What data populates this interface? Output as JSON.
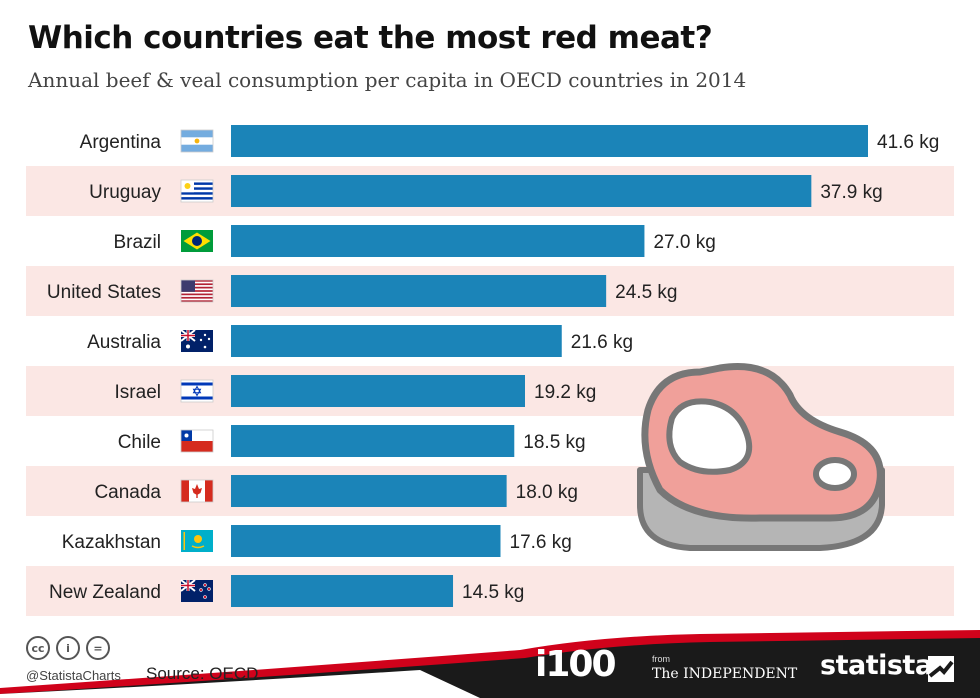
{
  "header": {
    "title": "Which countries eat the most red meat?",
    "subtitle": "Annual beef & veal consumption per capita in OECD countries in 2014"
  },
  "chart_data": {
    "type": "bar",
    "orientation": "horizontal",
    "categories": [
      "Argentina",
      "Uruguay",
      "Brazil",
      "United States",
      "Australia",
      "Israel",
      "Chile",
      "Canada",
      "Kazakhstan",
      "New Zealand"
    ],
    "values": [
      41.6,
      37.9,
      27.0,
      24.5,
      21.6,
      19.2,
      18.5,
      18.0,
      17.6,
      14.5
    ],
    "value_labels": [
      "41.6 kg",
      "37.9 kg",
      "27.0 kg",
      "24.5 kg",
      "21.6 kg",
      "19.2 kg",
      "18.5 kg",
      "18.0 kg",
      "17.6 kg",
      "14.5 kg"
    ],
    "unit": "kg",
    "xlim": [
      0,
      41.6
    ],
    "grid": false,
    "bar_color": "#1b84b8",
    "row_stripe_color": "#fbe7e4"
  },
  "flags": [
    "argentina-flag-icon",
    "uruguay-flag-icon",
    "brazil-flag-icon",
    "usa-flag-icon",
    "australia-flag-icon",
    "israel-flag-icon",
    "chile-flag-icon",
    "canada-flag-icon",
    "kazakhstan-flag-icon",
    "new-zealand-flag-icon"
  ],
  "decoration": {
    "icon": "steak-icon",
    "meat_color": "#f0a09a",
    "outline_color": "#777777"
  },
  "footer": {
    "cc_icons": [
      "cc",
      "i",
      "="
    ],
    "handle": "@StatistaCharts",
    "source": "Source: OECD",
    "i100": "i100",
    "from": "from",
    "independent": "The INDEPENDENT",
    "statista": "statista",
    "footer_color": "#1a1a1a",
    "accent_color": "#d0021b"
  }
}
